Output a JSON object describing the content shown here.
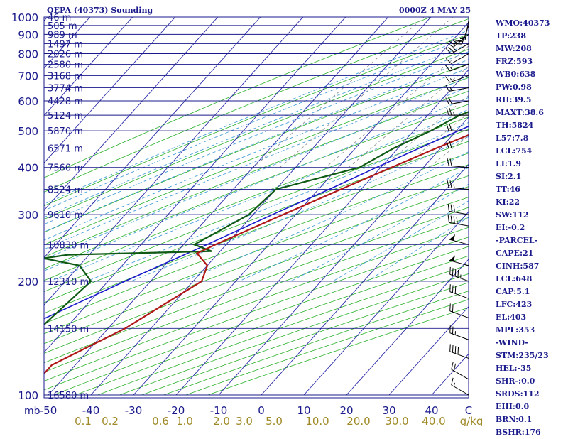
{
  "header": {
    "station_title": "OEPA (40373) Sounding",
    "valid_time": "0000Z  4 MAY 25"
  },
  "indices": [
    "WMO:40373",
    "TP:238",
    "MW:208",
    "FRZ:593",
    "WB0:638",
    "PW:0.98",
    "RH:39.5",
    "MAXT:38.6",
    "TH:5824",
    "L57:7.8",
    "LCL:754",
    "LI:1.9",
    "SI:2.1",
    "TT:46",
    "KI:22",
    "SW:112",
    "EI:-0.2",
    "-PARCEL-",
    "CAPE:21",
    "CINH:587",
    "LCL:648",
    "CAP:5.1",
    "LFC:423",
    "EL:403",
    "MPL:353",
    "-WIND-",
    "STM:235/23",
    "HEL:-35",
    "SHR-:0.0",
    "SRDS:112",
    "EHI:0.0",
    "BRN:0.1",
    "BSHR:176"
  ],
  "chart_data": {
    "type": "skew-t log-p",
    "y_axis": {
      "unit": "mb",
      "ticks": [
        100,
        200,
        300,
        400,
        500,
        600,
        700,
        800,
        900,
        1000
      ]
    },
    "x_axis": {
      "unit": "C",
      "ticks": [
        -50,
        -40,
        -30,
        -20,
        -10,
        0,
        10,
        20,
        30,
        40
      ]
    },
    "mixing_ratio": {
      "unit": "g/kg",
      "ticks": [
        "0.1",
        "0.2",
        "0.6",
        "1.0",
        "2.0",
        "3.0",
        "5.0",
        "10.0",
        "20.0",
        "30.0",
        "40.0"
      ]
    },
    "height_labels": [
      {
        "p": 100,
        "label": "16580 m"
      },
      {
        "p": 150,
        "label": "14150 m"
      },
      {
        "p": 200,
        "label": "12310 m"
      },
      {
        "p": 250,
        "label": "10830 m"
      },
      {
        "p": 300,
        "label": "9610 m"
      },
      {
        "p": 350,
        "label": "8524 m"
      },
      {
        "p": 400,
        "label": "7560 m"
      },
      {
        "p": 450,
        "label": "6571 m"
      },
      {
        "p": 500,
        "label": "5870 m"
      },
      {
        "p": 550,
        "label": "5124 m"
      },
      {
        "p": 600,
        "label": "4428 m"
      },
      {
        "p": 650,
        "label": "3774 m"
      },
      {
        "p": 700,
        "label": "3168 m"
      },
      {
        "p": 750,
        "label": "2580 m"
      },
      {
        "p": 800,
        "label": "2026 m"
      },
      {
        "p": 850,
        "label": "1497 m"
      },
      {
        "p": 900,
        "label": "989 m"
      },
      {
        "p": 950,
        "label": "505 m"
      },
      {
        "p": 1000,
        "label": "46 m"
      }
    ],
    "temperature": [
      {
        "p": 958,
        "t": 31.7
      },
      {
        "p": 950,
        "t": 39.0
      },
      {
        "p": 900,
        "t": 34.0
      },
      {
        "p": 850,
        "t": 30.0
      },
      {
        "p": 800,
        "t": 25.0
      },
      {
        "p": 700,
        "t": 14.0
      },
      {
        "p": 600,
        "t": 3.3
      },
      {
        "p": 550,
        "t": -0.5
      },
      {
        "p": 500,
        "t": -4.7
      },
      {
        "p": 450,
        "t": -11.0
      },
      {
        "p": 400,
        "t": -17.5
      },
      {
        "p": 350,
        "t": -24.8
      },
      {
        "p": 300,
        "t": -33.0
      },
      {
        "p": 250,
        "t": -42.5
      },
      {
        "p": 237,
        "t": -45.0
      },
      {
        "p": 220,
        "t": -40.0
      },
      {
        "p": 200,
        "t": -38.0
      },
      {
        "p": 150,
        "t": -46.0
      },
      {
        "p": 120,
        "t": -55.5
      },
      {
        "p": 110,
        "t": -55.5
      },
      {
        "p": 100,
        "t": -59.0
      }
    ],
    "dewpoint": [
      {
        "p": 958,
        "t": 13.5
      },
      {
        "p": 954,
        "t": 8.7
      },
      {
        "p": 950,
        "t": 8.0
      },
      {
        "p": 900,
        "t": 5.5
      },
      {
        "p": 850,
        "t": 4.0
      },
      {
        "p": 800,
        "t": -0.5
      },
      {
        "p": 700,
        "t": -2.0
      },
      {
        "p": 600,
        "t": -6.5
      },
      {
        "p": 550,
        "t": -12.5
      },
      {
        "p": 500,
        "t": -16.0
      },
      {
        "p": 450,
        "t": -21.0
      },
      {
        "p": 400,
        "t": -25.0
      },
      {
        "p": 350,
        "t": -40.0
      },
      {
        "p": 300,
        "t": -41.0
      },
      {
        "p": 250,
        "t": -47.5
      },
      {
        "p": 240,
        "t": -42.0
      },
      {
        "p": 235,
        "t": -75.0
      },
      {
        "p": 230,
        "t": -80.0
      },
      {
        "p": 220,
        "t": -70.0
      },
      {
        "p": 200,
        "t": -64.0
      },
      {
        "p": 150,
        "t": -66.0
      },
      {
        "p": 120,
        "t": -69.0
      },
      {
        "p": 100,
        "t": -64.0
      }
    ],
    "parcel": [
      {
        "p": 958,
        "t": 39.0
      },
      {
        "p": 900,
        "t": 31.0
      },
      {
        "p": 850,
        "t": 25.0
      },
      {
        "p": 800,
        "t": 19.8
      },
      {
        "p": 750,
        "t": 14.5
      },
      {
        "p": 700,
        "t": 9.0
      },
      {
        "p": 650,
        "t": 3.6
      },
      {
        "p": 600,
        "t": 0.0
      },
      {
        "p": 550,
        "t": -4.3
      },
      {
        "p": 500,
        "t": -9.5
      },
      {
        "p": 450,
        "t": -15.0
      },
      {
        "p": 400,
        "t": -21.0
      },
      {
        "p": 350,
        "t": -27.5
      },
      {
        "p": 300,
        "t": -35.5
      },
      {
        "p": 250,
        "t": -44.5
      },
      {
        "p": 200,
        "t": -56.0
      },
      {
        "p": 150,
        "t": -70.0
      },
      {
        "p": 130,
        "t": -77.0
      }
    ],
    "wind_barbs": [
      {
        "p": 100,
        "dir": 300,
        "spd": 15
      },
      {
        "p": 110,
        "dir": 300,
        "spd": 20
      },
      {
        "p": 125,
        "dir": 290,
        "spd": 40
      },
      {
        "p": 140,
        "dir": 290,
        "spd": 25
      },
      {
        "p": 160,
        "dir": 290,
        "spd": 20
      },
      {
        "p": 180,
        "dir": 290,
        "spd": 30
      },
      {
        "p": 200,
        "dir": 290,
        "spd": 45
      },
      {
        "p": 220,
        "dir": 285,
        "spd": 55
      },
      {
        "p": 250,
        "dir": 285,
        "spd": 50
      },
      {
        "p": 280,
        "dir": 280,
        "spd": 40
      },
      {
        "p": 300,
        "dir": 280,
        "spd": 30
      },
      {
        "p": 350,
        "dir": 275,
        "spd": 25
      },
      {
        "p": 400,
        "dir": 275,
        "spd": 20
      },
      {
        "p": 450,
        "dir": 270,
        "spd": 20
      },
      {
        "p": 500,
        "dir": 270,
        "spd": 20
      },
      {
        "p": 550,
        "dir": 270,
        "spd": 25
      },
      {
        "p": 600,
        "dir": 260,
        "spd": 20
      },
      {
        "p": 650,
        "dir": 260,
        "spd": 15
      },
      {
        "p": 700,
        "dir": 250,
        "spd": 15
      },
      {
        "p": 750,
        "dir": 250,
        "spd": 15
      },
      {
        "p": 800,
        "dir": 240,
        "spd": 10
      },
      {
        "p": 850,
        "dir": 240,
        "spd": 25
      },
      {
        "p": 900,
        "dir": 230,
        "spd": 30
      },
      {
        "p": 950,
        "dir": 200,
        "spd": 25
      },
      {
        "p": 980,
        "dir": 190,
        "spd": 15
      }
    ],
    "colors": {
      "temperature": "#b01818",
      "dewpoint": "#0e5a14",
      "parcel": "#1a1acc",
      "isobar": "#1a1a8c",
      "isotherm": "#2828a8",
      "dry_adiabat": "#28b028",
      "moist_adiabat": "#4aa0d8",
      "mixing_ratio": "#888888",
      "mixing_ratio_label": "#a08a28"
    }
  }
}
